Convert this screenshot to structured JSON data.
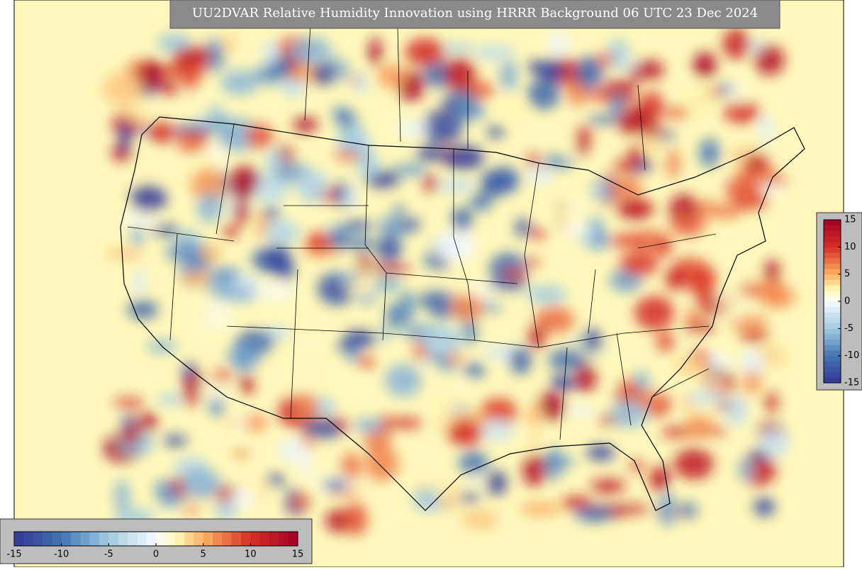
{
  "title": "UU2DVAR Relative Humidity Innovation using HRRR Background 06 UTC 23 Dec 2024",
  "colorbar": {
    "range": [
      -15,
      15
    ],
    "ticks": [
      -15,
      -10,
      -5,
      0,
      5,
      10,
      15
    ]
  }
}
